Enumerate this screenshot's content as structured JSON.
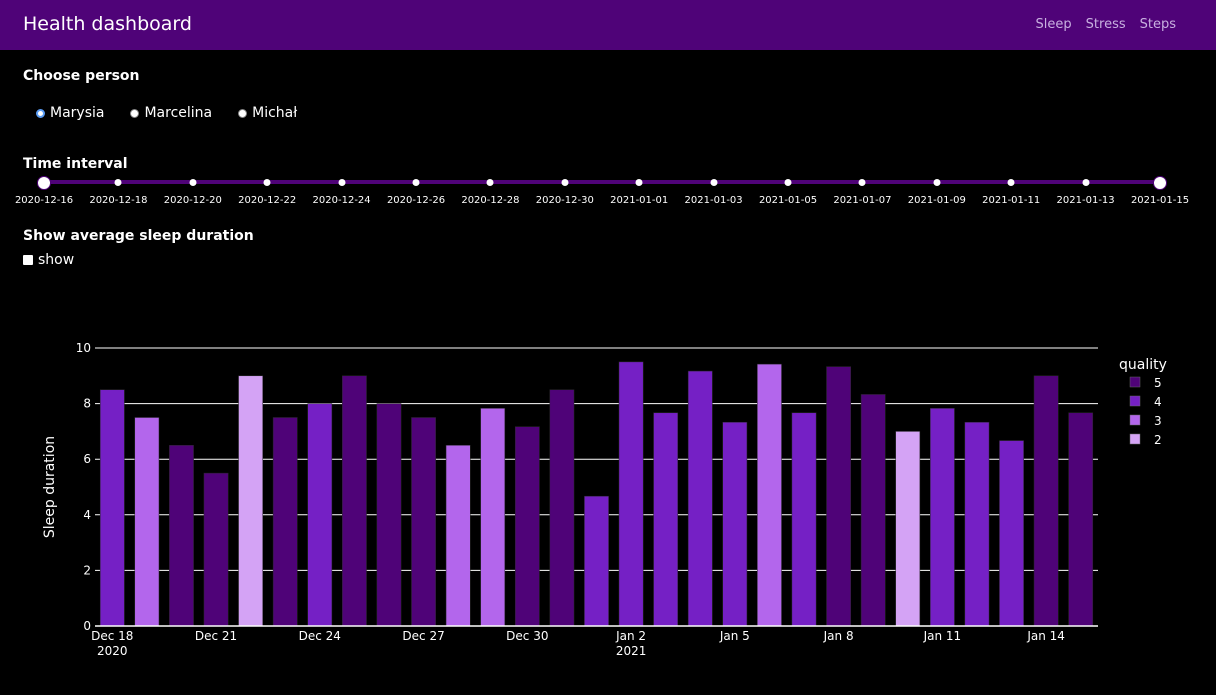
{
  "app": {
    "title": "Health dashboard"
  },
  "nav": {
    "links": [
      "Sleep",
      "Stress",
      "Steps"
    ]
  },
  "person": {
    "heading": "Choose person",
    "options": [
      "Marysia",
      "Marcelina",
      "Michał"
    ],
    "selected": "Marysia"
  },
  "interval": {
    "heading": "Time interval",
    "marks": [
      "2020-12-16",
      "2020-12-18",
      "2020-12-20",
      "2020-12-22",
      "2020-12-24",
      "2020-12-26",
      "2020-12-28",
      "2020-12-30",
      "2021-01-01",
      "2021-01-03",
      "2021-01-05",
      "2021-01-07",
      "2021-01-09",
      "2021-01-11",
      "2021-01-13",
      "2021-01-15"
    ],
    "start": "2020-12-16",
    "end": "2021-01-15"
  },
  "average": {
    "heading": "Show average sleep duration",
    "checkbox_label": "show",
    "checked": true
  },
  "colors": {
    "navbar": "#4f0378",
    "accent": "#5b9df5"
  },
  "chart_data": {
    "type": "bar",
    "xlabel": "",
    "ylabel": "Sleep duration",
    "ylim": [
      0,
      10
    ],
    "yticks": [
      "0",
      "2",
      "4",
      "6",
      "8",
      "10"
    ],
    "xticks": [
      {
        "date": "2020-12-18",
        "label": "Dec 18",
        "sub": "2020"
      },
      {
        "date": "2020-12-21",
        "label": "Dec 21",
        "sub": ""
      },
      {
        "date": "2020-12-24",
        "label": "Dec 24",
        "sub": ""
      },
      {
        "date": "2020-12-27",
        "label": "Dec 27",
        "sub": ""
      },
      {
        "date": "2020-12-30",
        "label": "Dec 30",
        "sub": ""
      },
      {
        "date": "2021-01-02",
        "label": "Jan 2",
        "sub": "2021"
      },
      {
        "date": "2021-01-05",
        "label": "Jan 5",
        "sub": ""
      },
      {
        "date": "2021-01-08",
        "label": "Jan 8",
        "sub": ""
      },
      {
        "date": "2021-01-11",
        "label": "Jan 11",
        "sub": ""
      },
      {
        "date": "2021-01-14",
        "label": "Jan 14",
        "sub": ""
      }
    ],
    "legend": {
      "title": "quality",
      "entries": [
        {
          "label": "5",
          "color": "#4f0378"
        },
        {
          "label": "4",
          "color": "#7520c5"
        },
        {
          "label": "3",
          "color": "#b366ec"
        },
        {
          "label": "2",
          "color": "#d4a3f5"
        }
      ]
    },
    "bars": [
      {
        "date": "2020-12-18",
        "value": 8.5,
        "quality": "4"
      },
      {
        "date": "2020-12-19",
        "value": 7.5,
        "quality": "3"
      },
      {
        "date": "2020-12-20",
        "value": 6.5,
        "quality": "5"
      },
      {
        "date": "2020-12-21",
        "value": 5.5,
        "quality": "5"
      },
      {
        "date": "2020-12-22",
        "value": 9.0,
        "quality": "2"
      },
      {
        "date": "2020-12-23",
        "value": 7.5,
        "quality": "5"
      },
      {
        "date": "2020-12-24",
        "value": 8.0,
        "quality": "4"
      },
      {
        "date": "2020-12-25",
        "value": 9.0,
        "quality": "5"
      },
      {
        "date": "2020-12-26",
        "value": 8.0,
        "quality": "5"
      },
      {
        "date": "2020-12-27",
        "value": 7.5,
        "quality": "5"
      },
      {
        "date": "2020-12-28",
        "value": 6.5,
        "quality": "3"
      },
      {
        "date": "2020-12-29",
        "value": 7.83,
        "quality": "3"
      },
      {
        "date": "2020-12-30",
        "value": 7.17,
        "quality": "5"
      },
      {
        "date": "2020-12-31",
        "value": 8.5,
        "quality": "5"
      },
      {
        "date": "2021-01-01",
        "value": 4.67,
        "quality": "4"
      },
      {
        "date": "2021-01-02",
        "value": 9.5,
        "quality": "4"
      },
      {
        "date": "2021-01-03",
        "value": 7.67,
        "quality": "4"
      },
      {
        "date": "2021-01-04",
        "value": 9.17,
        "quality": "4"
      },
      {
        "date": "2021-01-05",
        "value": 7.33,
        "quality": "4"
      },
      {
        "date": "2021-01-06",
        "value": 9.42,
        "quality": "3"
      },
      {
        "date": "2021-01-07",
        "value": 7.67,
        "quality": "4"
      },
      {
        "date": "2021-01-08",
        "value": 9.33,
        "quality": "5"
      },
      {
        "date": "2021-01-09",
        "value": 8.33,
        "quality": "5"
      },
      {
        "date": "2021-01-10",
        "value": 7.0,
        "quality": "2"
      },
      {
        "date": "2021-01-11",
        "value": 7.83,
        "quality": "4"
      },
      {
        "date": "2021-01-12",
        "value": 7.33,
        "quality": "4"
      },
      {
        "date": "2021-01-13",
        "value": 6.67,
        "quality": "4"
      },
      {
        "date": "2021-01-14",
        "value": 9.0,
        "quality": "5"
      },
      {
        "date": "2021-01-15",
        "value": 7.67,
        "quality": "5"
      }
    ]
  }
}
